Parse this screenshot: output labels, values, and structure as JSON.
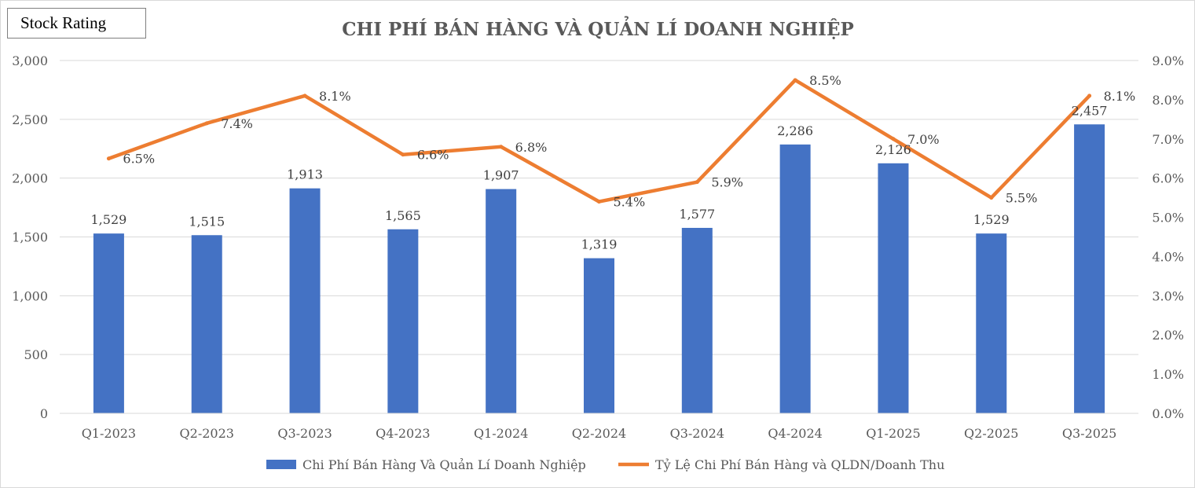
{
  "badge": {
    "label": "Stock Rating"
  },
  "chart_data": {
    "type": "bar",
    "title": "CHI PHÍ BÁN HÀNG VÀ QUẢN LÍ DOANH NGHIỆP",
    "categories": [
      "Q1-2023",
      "Q2-2023",
      "Q3-2023",
      "Q4-2023",
      "Q1-2024",
      "Q2-2024",
      "Q3-2024",
      "Q4-2024",
      "Q1-2025",
      "Q2-2025",
      "Q3-2025"
    ],
    "series": [
      {
        "name": "Chi Phí Bán Hàng Và Quản Lí Doanh Nghiệp",
        "kind": "bar",
        "axis": "left",
        "color": "#4472c4",
        "values": [
          1529,
          1515,
          1913,
          1565,
          1907,
          1319,
          1577,
          2286,
          2126,
          1529,
          2457
        ],
        "labels": [
          "1,529",
          "1,515",
          "1,913",
          "1,565",
          "1,907",
          "1,319",
          "1,577",
          "2,286",
          "2,126",
          "1,529",
          "2,457"
        ]
      },
      {
        "name": "Tỷ Lệ Chi Phí Bán Hàng và QLDN/Doanh Thu",
        "kind": "line",
        "axis": "right",
        "color": "#ed7d31",
        "values": [
          6.5,
          7.4,
          8.1,
          6.6,
          6.8,
          5.4,
          5.9,
          8.5,
          7.0,
          5.5,
          8.1
        ],
        "labels": [
          "6.5%",
          "7.4%",
          "8.1%",
          "6.6%",
          "6.8%",
          "5.4%",
          "5.9%",
          "8.5%",
          "7.0%",
          "5.5%",
          "8.1%"
        ]
      }
    ],
    "y_left": {
      "min": 0,
      "max": 3000,
      "step": 500,
      "ticks": [
        "0",
        "500",
        "1,000",
        "1,500",
        "2,000",
        "2,500",
        "3,000"
      ]
    },
    "y_right": {
      "min": 0,
      "max": 9,
      "step": 1,
      "ticks": [
        "0.0%",
        "1.0%",
        "2.0%",
        "3.0%",
        "4.0%",
        "5.0%",
        "6.0%",
        "7.0%",
        "8.0%",
        "9.0%"
      ]
    },
    "grid": true,
    "legend": "bottom"
  }
}
